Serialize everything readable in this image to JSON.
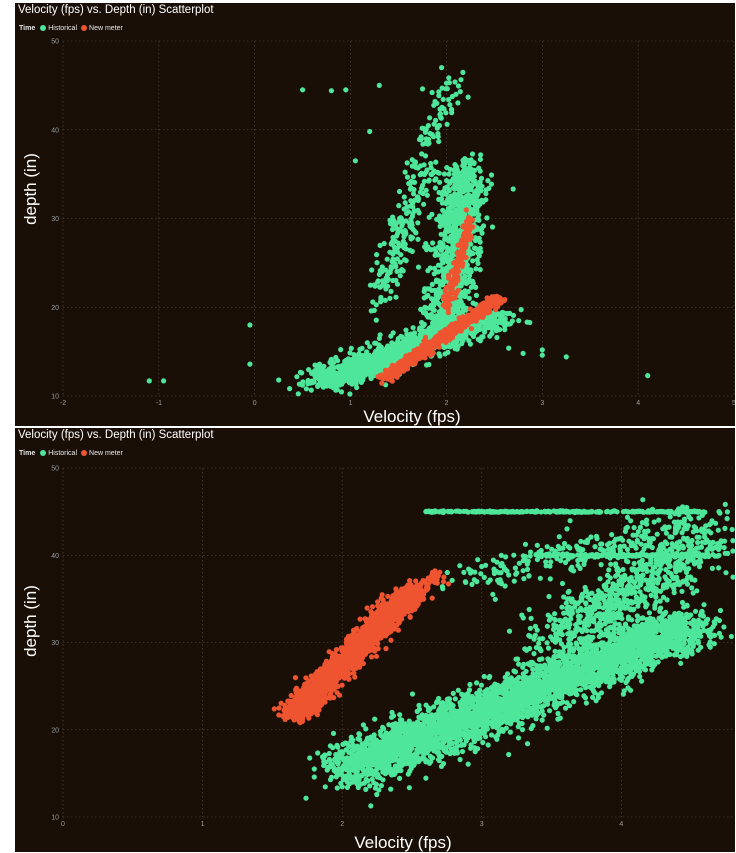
{
  "colors": {
    "background": "#1a0f07",
    "historical": "#4ee69a",
    "new_meter": "#ef5430"
  },
  "chart_data": [
    {
      "type": "scatter",
      "title": "Velocity (fps) vs. Depth (in) Scatterplot",
      "xlabel": "Velocity (fps)",
      "ylabel": "depth (in)",
      "xlim": [
        -2,
        5
      ],
      "ylim": [
        10,
        50
      ],
      "xticks": [
        "-2",
        "-1",
        "0",
        "1",
        "2",
        "3",
        "4",
        "5"
      ],
      "yticks": [
        "10",
        "20",
        "30",
        "40",
        "50"
      ],
      "grid": true,
      "legend": {
        "title": "Time",
        "placement": "top-left",
        "entries": [
          "Historical",
          "New meter"
        ]
      },
      "series": [
        {
          "name": "Historical",
          "color": "#4ee69a",
          "cloud": [
            {
              "n": 1200,
              "from": [
                0.7,
                11.5
              ],
              "to": [
                2.5,
                19
              ],
              "spread_x": 0.3,
              "spread_y": 1.2
            },
            {
              "n": 900,
              "from": [
                2.0,
                18
              ],
              "to": [
                2.2,
                36
              ],
              "spread_x": 0.22,
              "spread_y": 1.5
            },
            {
              "n": 200,
              "from": [
                1.3,
                21
              ],
              "to": [
                1.8,
                37
              ],
              "spread_x": 0.15,
              "spread_y": 2.5
            },
            {
              "n": 60,
              "from": [
                1.8,
                38
              ],
              "to": [
                2.1,
                46
              ],
              "spread_x": 0.12,
              "spread_y": 1.2
            }
          ],
          "points": [
            [
              0.5,
              44.5
            ],
            [
              0.8,
              44.4
            ],
            [
              0.95,
              44.5
            ],
            [
              1.3,
              45
            ],
            [
              1.75,
              44.6
            ],
            [
              1.85,
              44.2
            ],
            [
              1.95,
              47
            ],
            [
              2.1,
              44
            ],
            [
              1.2,
              39.8
            ],
            [
              1.05,
              36.5
            ],
            [
              -1.1,
              11.7
            ],
            [
              -0.95,
              11.7
            ],
            [
              -0.05,
              18
            ],
            [
              -0.05,
              13.6
            ],
            [
              0.25,
              11.8
            ],
            [
              3.0,
              14.6
            ],
            [
              3.0,
              15.2
            ],
            [
              3.25,
              14.4
            ],
            [
              4.1,
              12.3
            ],
            [
              2.65,
              15.4
            ],
            [
              2.8,
              14.8
            ]
          ]
        },
        {
          "name": "New meter",
          "color": "#ef5430",
          "cloud": [
            {
              "n": 900,
              "from": [
                1.35,
                12
              ],
              "to": [
                2.55,
                21
              ],
              "spread_x": 0.06,
              "spread_y": 0.45
            },
            {
              "n": 150,
              "from": [
                2.0,
                20
              ],
              "to": [
                2.25,
                30
              ],
              "spread_x": 0.05,
              "spread_y": 0.8
            }
          ],
          "points": []
        }
      ]
    },
    {
      "type": "scatter",
      "title": "Velocity (fps) vs. Depth (in) Scatterplot",
      "xlabel": "Velocity (fps)",
      "ylabel": "depth (in)",
      "xlim": [
        0,
        4.8
      ],
      "ylim": [
        10,
        50
      ],
      "xticks": [
        "0",
        "1",
        "2",
        "3",
        "4"
      ],
      "yticks": [
        "10",
        "20",
        "30",
        "40",
        "50"
      ],
      "grid": true,
      "legend": {
        "title": "Time",
        "placement": "top-left",
        "entries": [
          "Historical",
          "New meter"
        ]
      },
      "series": [
        {
          "name": "Historical",
          "color": "#4ee69a",
          "cloud": [
            {
              "n": 3500,
              "from": [
                2.05,
                15.5
              ],
              "to": [
                4.5,
                32
              ],
              "spread_x": 0.25,
              "spread_y": 2.2
            },
            {
              "n": 700,
              "from": [
                3.5,
                30
              ],
              "to": [
                4.6,
                42
              ],
              "spread_x": 0.3,
              "spread_y": 2.5
            },
            {
              "n": 250,
              "from": [
                2.6,
                45
              ],
              "to": [
                4.6,
                45
              ],
              "spread_x": 0.02,
              "spread_y": 0.08
            },
            {
              "n": 150,
              "from": [
                3.4,
                40
              ],
              "to": [
                4.6,
                40
              ],
              "spread_x": 0.02,
              "spread_y": 0.15
            },
            {
              "n": 250,
              "from": [
                2.9,
                37
              ],
              "to": [
                4.6,
                44
              ],
              "spread_x": 0.3,
              "spread_y": 1.8
            }
          ],
          "points": [
            [
              1.8,
              15.5
            ],
            [
              2.05,
              15.2
            ],
            [
              2.0,
              14.8
            ],
            [
              2.15,
              16.5
            ],
            [
              4.7,
              45
            ],
            [
              4.75,
              38
            ],
            [
              4.8,
              37.5
            ],
            [
              4.7,
              40
            ]
          ]
        },
        {
          "name": "New meter",
          "color": "#ef5430",
          "cloud": [
            {
              "n": 1800,
              "from": [
                1.65,
                21.5
              ],
              "to": [
                2.5,
                36
              ],
              "spread_x": 0.1,
              "spread_y": 0.9
            },
            {
              "n": 80,
              "from": [
                2.45,
                35.5
              ],
              "to": [
                2.7,
                37.5
              ],
              "spread_x": 0.05,
              "spread_y": 0.6
            }
          ],
          "points": []
        }
      ]
    }
  ]
}
